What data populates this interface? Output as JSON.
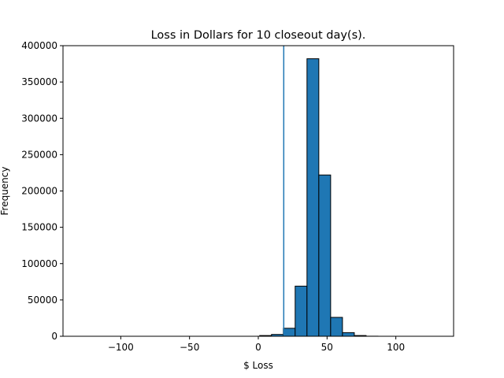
{
  "chart_data": {
    "type": "bar",
    "title": "Loss in Dollars for 10 closeout day(s).",
    "xlabel": "$ Loss",
    "ylabel": "Frequency",
    "xlim": [
      -142,
      142
    ],
    "ylim": [
      0,
      400000
    ],
    "xticks": [
      -100,
      -50,
      0,
      50,
      100
    ],
    "xtick_labels": [
      "−100",
      "−50",
      "0",
      "50",
      "100"
    ],
    "yticks": [
      0,
      50000,
      100000,
      150000,
      200000,
      250000,
      300000,
      350000,
      400000
    ],
    "ytick_labels": [
      "0",
      "50000",
      "100000",
      "150000",
      "200000",
      "250000",
      "300000",
      "350000",
      "400000"
    ],
    "bin_start": -128,
    "bin_width": 8.6,
    "counts": [
      0,
      0,
      0,
      0,
      0,
      0,
      0,
      0,
      0,
      0,
      0,
      0,
      0,
      0,
      0,
      1000,
      2500,
      11000,
      69000,
      382000,
      222000,
      26000,
      5000,
      1000,
      100,
      0,
      0,
      0,
      0,
      0
    ],
    "vline_x": 18.5,
    "bar_color": "#1f77b4",
    "edge_color": "#000000",
    "grid": false,
    "legend": "none"
  }
}
